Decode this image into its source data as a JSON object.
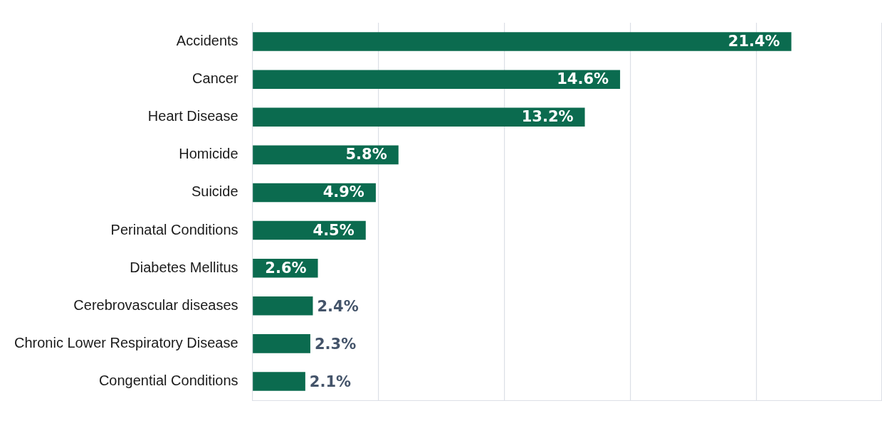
{
  "chart_data": {
    "type": "bar",
    "orientation": "horizontal",
    "categories": [
      "Accidents",
      "Cancer",
      "Heart Disease",
      "Homicide",
      "Suicide",
      "Perinatal Conditions",
      "Diabetes Mellitus",
      "Cerebrovascular diseases",
      "Chronic Lower Respiratory Disease",
      "Congential Conditions"
    ],
    "values": [
      21.4,
      14.6,
      13.2,
      5.8,
      4.9,
      4.5,
      2.6,
      2.4,
      2.3,
      2.1
    ],
    "value_labels": [
      "21.4%",
      "14.6%",
      "13.2%",
      "5.8%",
      "4.9%",
      "4.5%",
      "2.6%",
      "2.4%",
      "2.3%",
      "2.1%"
    ],
    "color": "#0b6b4f",
    "xlim": [
      0,
      25
    ],
    "xticks": [
      {
        "value": 0,
        "label": null
      },
      {
        "value": 5,
        "label": null
      },
      {
        "value": 10,
        "label": null
      },
      {
        "value": 15,
        "label": null
      },
      {
        "value": 20,
        "label": null
      },
      {
        "value": 25,
        "label": null
      }
    ],
    "grid": "x",
    "tick_labels": "y"
  }
}
